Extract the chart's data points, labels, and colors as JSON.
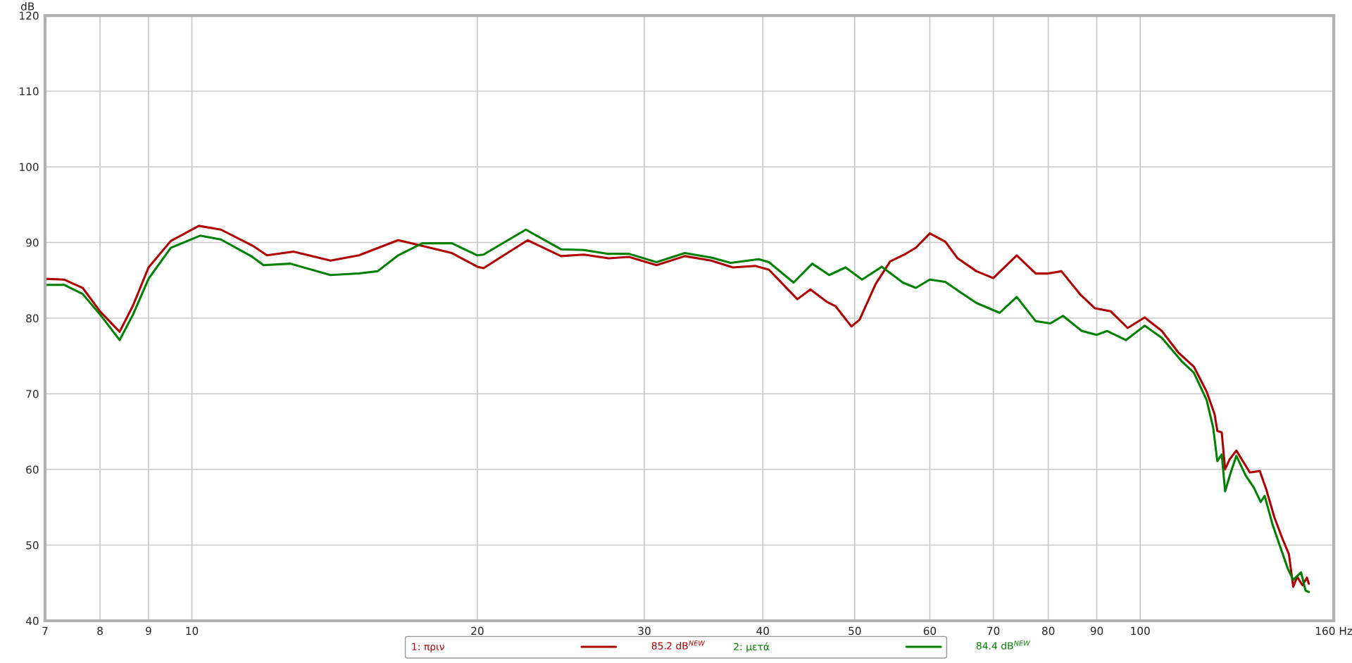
{
  "chart_data": {
    "type": "line",
    "ylabel": "dB",
    "log": "x",
    "xlim": [
      7,
      160
    ],
    "xticks": [
      7,
      8,
      9,
      10,
      20,
      30,
      40,
      50,
      60,
      70,
      80,
      90,
      100,
      {
        "value": 160,
        "label": "160 Hz"
      }
    ],
    "ylim": [
      40,
      120
    ],
    "yticks": [
      40,
      50,
      60,
      70,
      80,
      90,
      100,
      110,
      120
    ],
    "grid": true,
    "legend": "bottom",
    "marker": "none",
    "line_style": "solid",
    "annotations": [
      "85.2 dB$^{NEW}$",
      "84.4 dB$^{NEW}$"
    ],
    "series": [
      {
        "name": "1: πριν",
        "color": "#b00000",
        "x": [
          7,
          7.33,
          7.67,
          8,
          8.39,
          8.67,
          9,
          9.5,
          10.17,
          10.73,
          11.58,
          12.0,
          12.8,
          14.0,
          15.0,
          16.5,
          17.3,
          18.8,
          20,
          20.3,
          22.6,
          24.5,
          25.9,
          27.5,
          28.9,
          30.9,
          33.1,
          35.3,
          37.2,
          39.3,
          40.6,
          43.5,
          44.9,
          46.8,
          47.7,
          49.6,
          50.6,
          52.6,
          54.5,
          56.4,
          58.0,
          60.0,
          62.3,
          64.2,
          67.2,
          70,
          74.1,
          77.6,
          80,
          82.6,
          86.5,
          89.6,
          93.1,
          97.0,
          101.1,
          105.4,
          109.8,
          113.9,
          117.5,
          119.8,
          120.6,
          121.9,
          122.9,
          124.2,
          126.3,
          130.5,
          133.7,
          135.8,
          138.5,
          141.3,
          143.5,
          145.0,
          146.4,
          148.3,
          149.9,
          150.6
        ],
        "values": [
          85.2,
          85.1,
          84.0,
          80.9,
          78.2,
          81.7,
          86.7,
          90.2,
          92.2,
          91.7,
          89.6,
          88.3,
          88.8,
          87.6,
          88.3,
          90.3,
          89.7,
          88.6,
          86.8,
          86.6,
          90.3,
          88.2,
          88.4,
          87.9,
          88.1,
          87.0,
          88.2,
          87.6,
          86.7,
          86.9,
          86.4,
          82.5,
          83.8,
          82.1,
          81.6,
          78.9,
          79.8,
          84.5,
          87.5,
          88.4,
          89.3,
          91.2,
          90.1,
          87.9,
          86.2,
          85.3,
          88.3,
          85.9,
          85.9,
          86.2,
          83.1,
          81.3,
          80.9,
          78.7,
          80.1,
          78.3,
          75.4,
          73.6,
          70.3,
          67.3,
          65.1,
          64.9,
          60.0,
          61.3,
          62.5,
          59.6,
          59.8,
          57.4,
          53.7,
          50.8,
          48.8,
          44.5,
          45.8,
          44.7,
          45.7,
          44.9
        ]
      },
      {
        "name": "2: μετά",
        "color": "#008000",
        "x": [
          7,
          7.33,
          7.67,
          8,
          8.39,
          8.67,
          9,
          9.5,
          10.2,
          10.73,
          11.58,
          11.9,
          12.7,
          14.0,
          15.0,
          15.7,
          16.5,
          17.5,
          18.8,
          20,
          20.3,
          22.5,
          24.5,
          25.9,
          27.5,
          28.9,
          30.9,
          33.1,
          35.3,
          37.0,
          39.6,
          40.6,
          43.1,
          45.1,
          47.0,
          48.9,
          50.9,
          53.4,
          56.2,
          58.0,
          60.0,
          62.3,
          64.5,
          67.2,
          71.1,
          74.1,
          77.6,
          80.4,
          82.9,
          86.8,
          90,
          92.3,
          96.6,
          101.1,
          105.4,
          110.6,
          113.9,
          117.5,
          119.4,
          120.6,
          121.9,
          122.9,
          124.6,
          126.3,
          129.2,
          131.8,
          134.0,
          135.3,
          138.0,
          140.3,
          143.1,
          145.0,
          147.8,
          149.4,
          150.6
        ],
        "values": [
          84.4,
          84.4,
          83.2,
          80.5,
          77.1,
          80.5,
          85.2,
          89.3,
          90.9,
          90.4,
          88.1,
          87.0,
          87.2,
          85.7,
          85.9,
          86.2,
          88.3,
          89.9,
          89.9,
          88.3,
          88.4,
          91.7,
          89.1,
          89.0,
          88.5,
          88.5,
          87.4,
          88.6,
          88.0,
          87.3,
          87.8,
          87.4,
          84.7,
          87.2,
          85.7,
          86.7,
          85.1,
          86.8,
          84.7,
          84.0,
          85.1,
          84.8,
          83.5,
          82.0,
          80.7,
          82.8,
          79.6,
          79.3,
          80.3,
          78.3,
          77.8,
          78.3,
          77.1,
          79.0,
          77.4,
          74.3,
          72.8,
          69.2,
          65.5,
          61.1,
          62.0,
          57.1,
          59.6,
          61.8,
          59.2,
          57.6,
          55.7,
          56.5,
          52.6,
          50.0,
          46.9,
          45.4,
          46.4,
          44.0,
          43.8
        ]
      }
    ]
  }
}
